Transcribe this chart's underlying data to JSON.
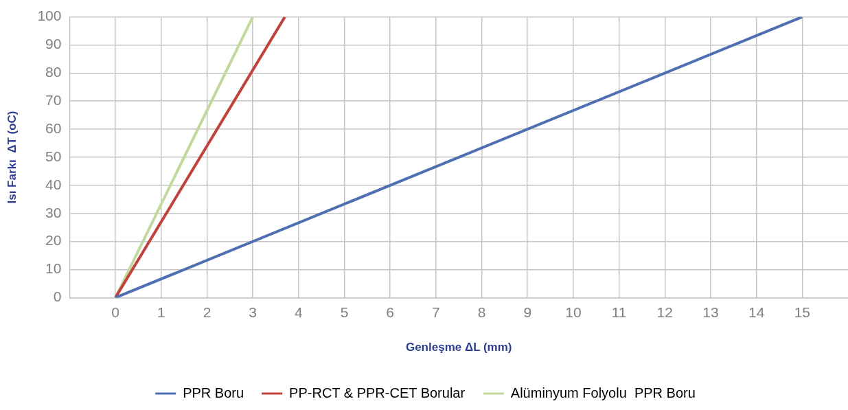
{
  "chart_data": {
    "type": "line",
    "xlabel": "Genleşme ΔL (mm)",
    "ylabel": "Isı Farkı  ΔT (oC)",
    "xlim": [
      -1,
      16
    ],
    "xticks": [
      0,
      1,
      2,
      3,
      4,
      5,
      6,
      7,
      8,
      9,
      10,
      11,
      12,
      13,
      14,
      15
    ],
    "ylim": [
      0,
      100
    ],
    "yticks": [
      0,
      10,
      20,
      30,
      40,
      50,
      60,
      70,
      80,
      90,
      100
    ],
    "grid": true,
    "legend": "bottom",
    "marker": "none",
    "line_style": "solid",
    "series": [
      {
        "name": "PPR Boru",
        "color": "#4f6fb3",
        "x": [
          0,
          15
        ],
        "values": [
          0,
          100
        ]
      },
      {
        "name": "PP-RCT & PPR-CET Borular",
        "color": "#c0423c",
        "x": [
          0,
          3.7
        ],
        "values": [
          0,
          100
        ]
      },
      {
        "name": "Alüminyum Folyolu  PPR Boru",
        "color": "#c3d89f",
        "x": [
          0,
          3
        ],
        "values": [
          0,
          100
        ]
      }
    ]
  }
}
